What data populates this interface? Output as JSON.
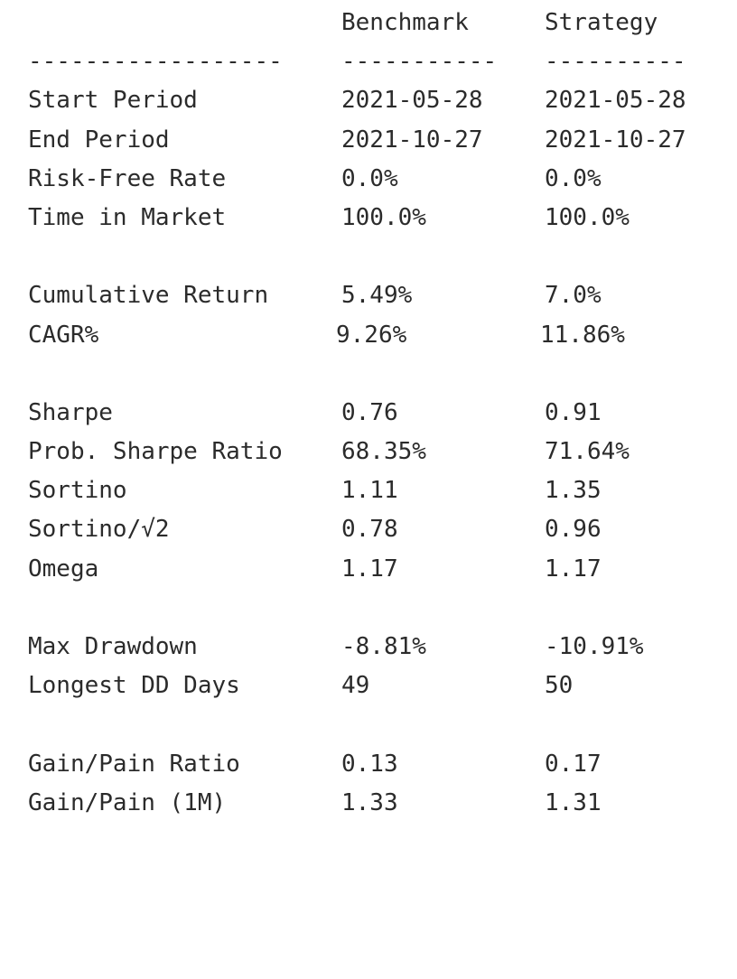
{
  "header": {
    "benchmark": "Benchmark",
    "strategy": "Strategy"
  },
  "separator": {
    "label": "------------------",
    "benchmark": "-----------",
    "strategy": "----------"
  },
  "rows": [
    {
      "label": "Start Period",
      "benchmark": "2021-05-28",
      "strategy": "2021-05-28"
    },
    {
      "label": "End Period",
      "benchmark": "2021-10-27",
      "strategy": "2021-10-27"
    },
    {
      "label": "Risk-Free Rate",
      "benchmark": "0.0%",
      "strategy": "0.0%"
    },
    {
      "label": "Time in Market",
      "benchmark": "100.0%",
      "strategy": "100.0%"
    },
    {
      "label": "Cumulative Return",
      "benchmark": "5.49%",
      "strategy": "7.0%"
    },
    {
      "label": "CAGR%",
      "benchmark": "9.26%",
      "strategy": "11.86%"
    },
    {
      "label": "Sharpe",
      "benchmark": "0.76",
      "strategy": "0.91"
    },
    {
      "label": "Prob. Sharpe Ratio",
      "benchmark": "68.35%",
      "strategy": "71.64%"
    },
    {
      "label": "Sortino",
      "benchmark": "1.11",
      "strategy": "1.35"
    },
    {
      "label": "Sortino/√2",
      "benchmark": "0.78",
      "strategy": "0.96"
    },
    {
      "label": "Omega",
      "benchmark": "1.17",
      "strategy": "1.17"
    },
    {
      "label": "Max Drawdown",
      "benchmark": "-8.81%",
      "strategy": "-10.91%"
    },
    {
      "label": "Longest DD Days",
      "benchmark": "49",
      "strategy": "50"
    },
    {
      "label": "Gain/Pain Ratio",
      "benchmark": "0.13",
      "strategy": "0.17"
    },
    {
      "label": "Gain/Pain (1M)",
      "benchmark": "1.33",
      "strategy": "1.31"
    }
  ]
}
